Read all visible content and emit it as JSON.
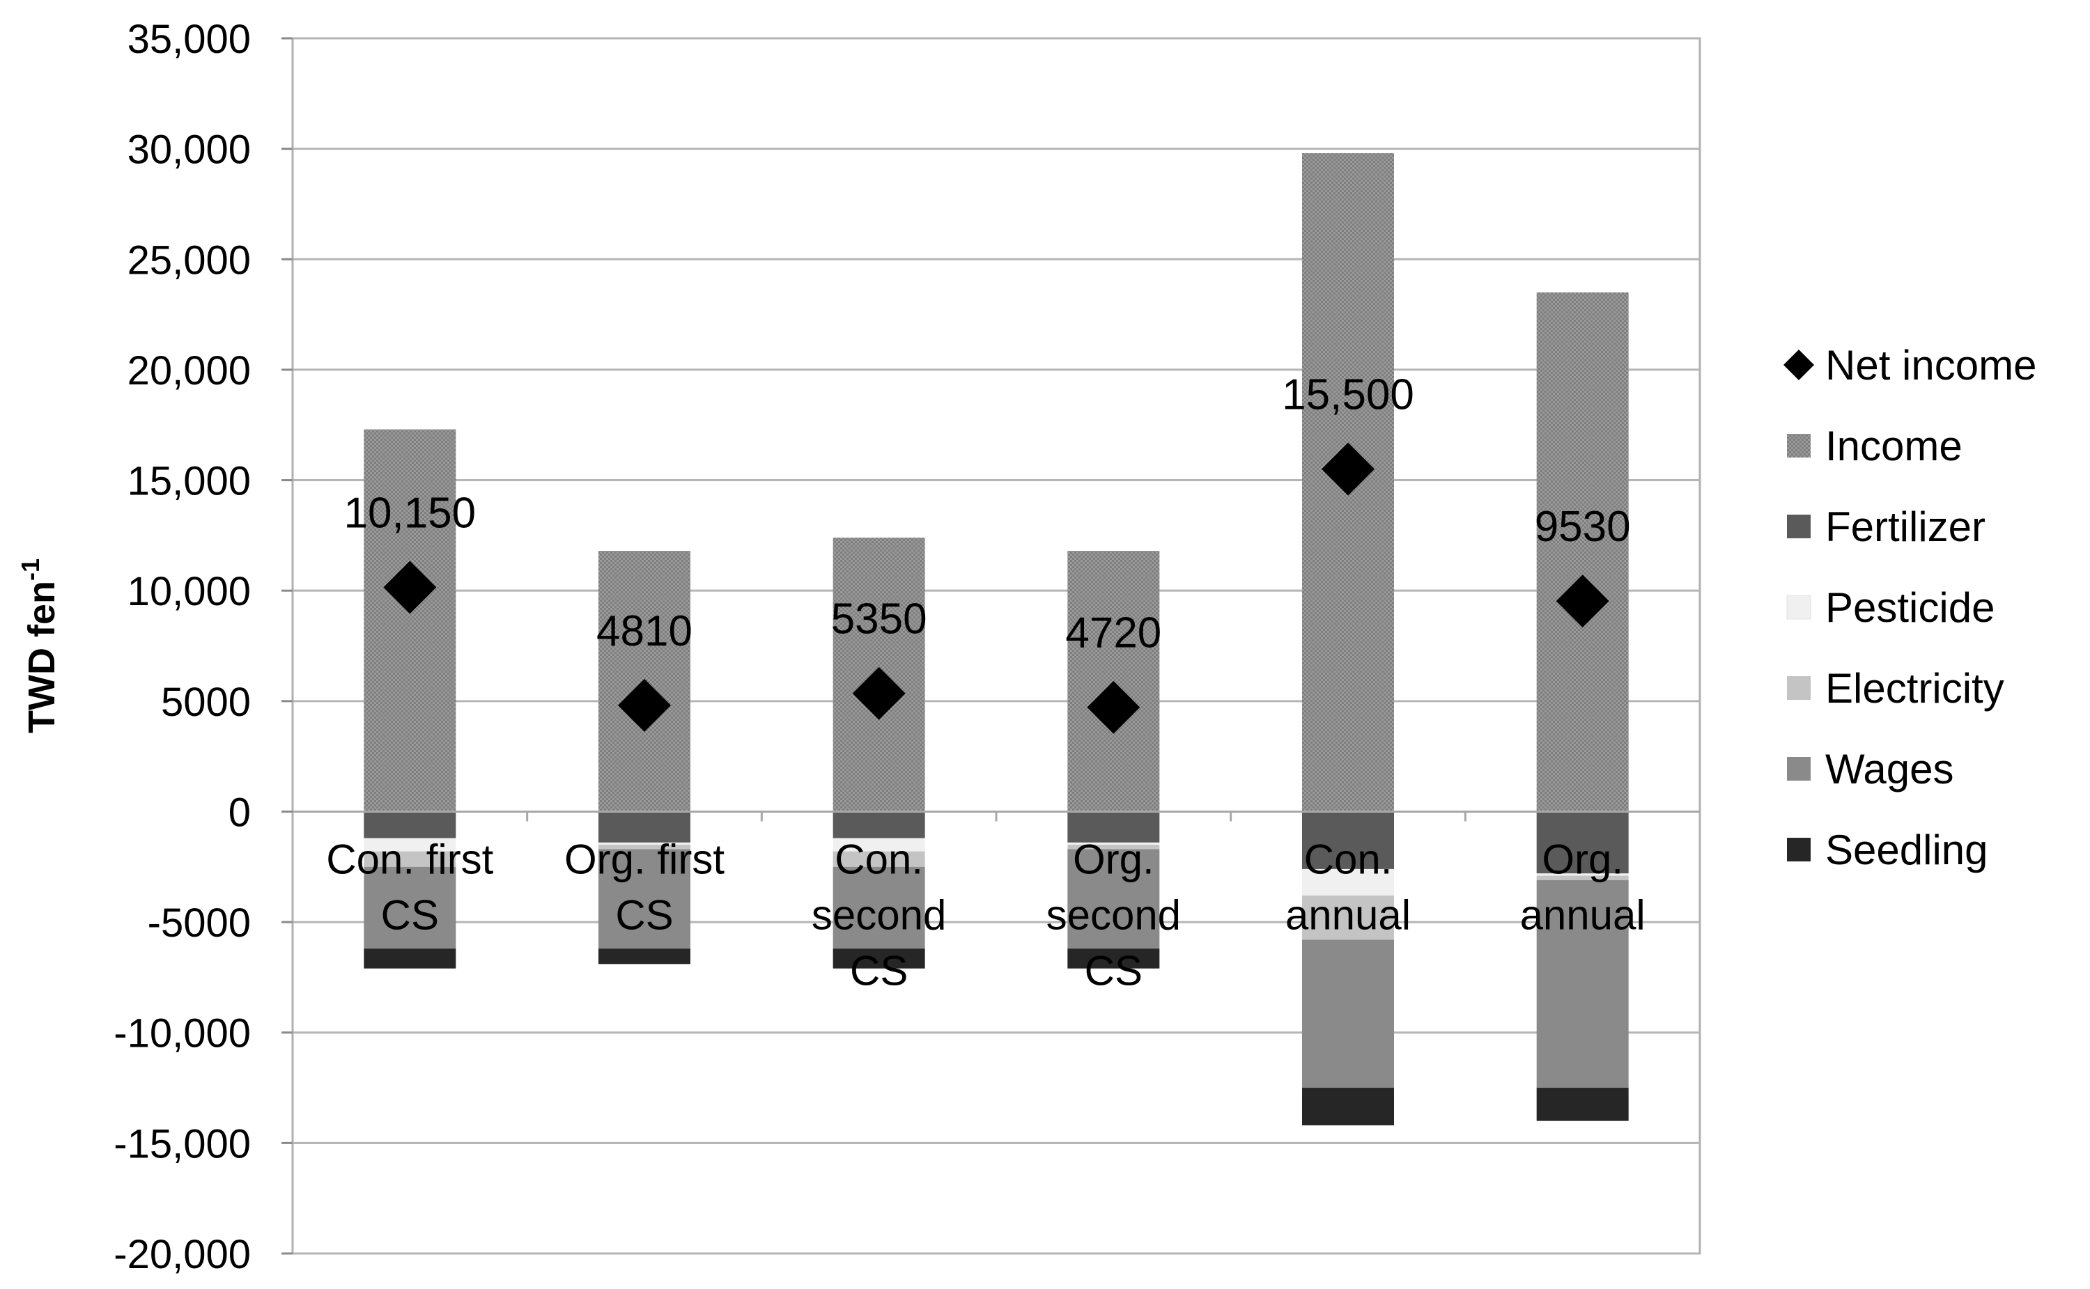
{
  "chart_data": {
    "type": "bar",
    "stacked": true,
    "ylabel": "TWD fen",
    "ylabel_superscript": "-1",
    "ylim": [
      -20000,
      35000
    ],
    "ytick_step": 5000,
    "yticks": [
      "35,000",
      "30,000",
      "25,000",
      "20,000",
      "15,000",
      "10,000",
      "5000",
      "0",
      "-5000",
      "-10,000",
      "-15,000",
      "-20,000"
    ],
    "categories": [
      "Con. first CS",
      "Org. first CS",
      "Con. second CS",
      "Org. second CS",
      "Con. annual",
      "Org. annual"
    ],
    "category_lines": [
      [
        "Con. first",
        "CS"
      ],
      [
        "Org. first",
        "CS"
      ],
      [
        "Con.",
        "second",
        "CS"
      ],
      [
        "Org.",
        "second",
        "CS"
      ],
      [
        "Con.",
        "annual"
      ],
      [
        "Org.",
        "annual"
      ]
    ],
    "series": [
      {
        "name": "Income",
        "color": "#8f8f8f",
        "pattern": true,
        "values": [
          17300,
          11800,
          12400,
          11800,
          29800,
          23500
        ]
      },
      {
        "name": "Fertilizer",
        "color": "#5a5a5a",
        "values": [
          -1200,
          -1400,
          -1200,
          -1400,
          -2600,
          -2800
        ]
      },
      {
        "name": "Pesticide",
        "color": "#f0f0f0",
        "values": [
          -600,
          -100,
          -600,
          -100,
          -1200,
          -100
        ]
      },
      {
        "name": "Electricity",
        "color": "#c4c4c4",
        "values": [
          -700,
          -200,
          -700,
          -200,
          -2000,
          -200
        ]
      },
      {
        "name": "Wages",
        "color": "#8a8a8a",
        "values": [
          -3700,
          -4500,
          -3700,
          -4500,
          -6700,
          -9400
        ]
      },
      {
        "name": "Seedling",
        "color": "#262626",
        "values": [
          -900,
          -700,
          -900,
          -900,
          -1700,
          -1500
        ]
      }
    ],
    "net_income": {
      "name": "Net income",
      "marker": "diamond",
      "values": [
        10150,
        4810,
        5350,
        4720,
        15500,
        9530
      ],
      "labels": [
        "10,150",
        "4810",
        "5350",
        "4720",
        "15,500",
        "9530"
      ]
    },
    "legend": {
      "position": "right",
      "order": [
        "Net income",
        "Income",
        "Fertilizer",
        "Pesticide",
        "Electricity",
        "Wages",
        "Seedling"
      ]
    },
    "grid": true
  }
}
